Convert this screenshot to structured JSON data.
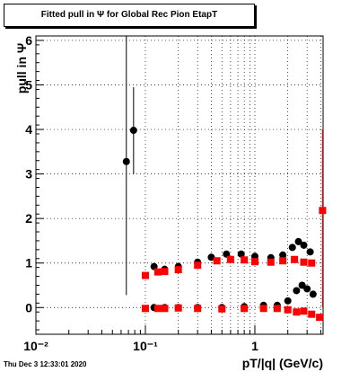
{
  "title": "Fitted pull in  Ψ  for Global Rec Pion EtapT",
  "datestamp": "Thu Dec  3 12:33:01 2020",
  "chart_data": {
    "type": "scatter",
    "title": "Fitted pull in  Ψ  for Global Rec Pion EtapT",
    "xlabel": "pT/|q| (GeV/c)",
    "ylabel": "pull in  Ψ",
    "xscale": "log",
    "xlim": [
      0.01,
      4.2
    ],
    "ylim": [
      -0.6,
      6.1
    ],
    "grid": true,
    "x_ticks": [
      {
        "v": 0.01,
        "label": "10⁻²"
      },
      {
        "v": 0.1,
        "label": "10⁻¹"
      },
      {
        "v": 1,
        "label": "1"
      }
    ],
    "y_ticks": [
      {
        "v": 0,
        "label": "0"
      },
      {
        "v": 1,
        "label": "1"
      },
      {
        "v": 2,
        "label": "2"
      },
      {
        "v": 3,
        "label": "3"
      },
      {
        "v": 4,
        "label": "4"
      },
      {
        "v": 5,
        "label": "5"
      },
      {
        "v": 6,
        "label": "6"
      }
    ],
    "series": [
      {
        "marker": "circle",
        "color": "#000000",
        "points": [
          {
            "x": 0.067,
            "y": 3.28,
            "lo": 0.28,
            "hi": 6.1
          },
          {
            "x": 0.078,
            "y": 3.98,
            "lo": 3.0,
            "hi": 4.95
          },
          {
            "x": 0.12,
            "y": 0.0
          },
          {
            "x": 0.15,
            "y": 0.0
          },
          {
            "x": 0.2,
            "y": 0.0
          },
          {
            "x": 0.3,
            "y": 0.0
          },
          {
            "x": 0.5,
            "y": 0.0
          },
          {
            "x": 0.8,
            "y": 0.02
          },
          {
            "x": 1.2,
            "y": 0.05
          },
          {
            "x": 1.6,
            "y": 0.05
          },
          {
            "x": 2.0,
            "y": 0.15
          },
          {
            "x": 2.4,
            "y": 0.38
          },
          {
            "x": 2.7,
            "y": 0.5
          },
          {
            "x": 3.0,
            "y": 0.42
          },
          {
            "x": 3.4,
            "y": 0.3
          },
          {
            "x": 0.12,
            "y": 0.92
          },
          {
            "x": 0.15,
            "y": 0.86
          },
          {
            "x": 0.2,
            "y": 0.92
          },
          {
            "x": 0.3,
            "y": 1.02
          },
          {
            "x": 0.4,
            "y": 1.13
          },
          {
            "x": 0.55,
            "y": 1.2
          },
          {
            "x": 0.75,
            "y": 1.2
          },
          {
            "x": 1.0,
            "y": 1.15
          },
          {
            "x": 1.4,
            "y": 1.12
          },
          {
            "x": 1.8,
            "y": 1.18
          },
          {
            "x": 2.2,
            "y": 1.35
          },
          {
            "x": 2.5,
            "y": 1.48
          },
          {
            "x": 2.8,
            "y": 1.4
          },
          {
            "x": 3.2,
            "y": 1.25
          }
        ]
      },
      {
        "marker": "square",
        "color": "#ff0000",
        "points": [
          {
            "x": 0.1,
            "y": 0.72
          },
          {
            "x": 0.13,
            "y": 0.8
          },
          {
            "x": 0.15,
            "y": 0.81
          },
          {
            "x": 0.2,
            "y": 0.85
          },
          {
            "x": 0.3,
            "y": 0.95
          },
          {
            "x": 0.45,
            "y": 1.05
          },
          {
            "x": 0.6,
            "y": 1.08
          },
          {
            "x": 0.8,
            "y": 1.07
          },
          {
            "x": 1.0,
            "y": 1.03
          },
          {
            "x": 1.4,
            "y": 1.02
          },
          {
            "x": 1.8,
            "y": 1.05
          },
          {
            "x": 2.3,
            "y": 1.08
          },
          {
            "x": 2.8,
            "y": 1.02
          },
          {
            "x": 3.3,
            "y": 1.0
          },
          {
            "x": 4.15,
            "y": 2.18,
            "lo": 0.0,
            "hi": 4.0
          },
          {
            "x": 0.1,
            "y": -0.02
          },
          {
            "x": 0.13,
            "y": -0.02
          },
          {
            "x": 0.15,
            "y": -0.02
          },
          {
            "x": 0.2,
            "y": -0.01
          },
          {
            "x": 0.3,
            "y": -0.02
          },
          {
            "x": 0.5,
            "y": -0.03
          },
          {
            "x": 0.8,
            "y": -0.02
          },
          {
            "x": 1.2,
            "y": -0.02
          },
          {
            "x": 1.6,
            "y": -0.02
          },
          {
            "x": 2.0,
            "y": -0.05
          },
          {
            "x": 2.4,
            "y": -0.1
          },
          {
            "x": 2.8,
            "y": -0.08
          },
          {
            "x": 3.3,
            "y": -0.15
          },
          {
            "x": 3.9,
            "y": -0.22
          }
        ]
      }
    ]
  }
}
